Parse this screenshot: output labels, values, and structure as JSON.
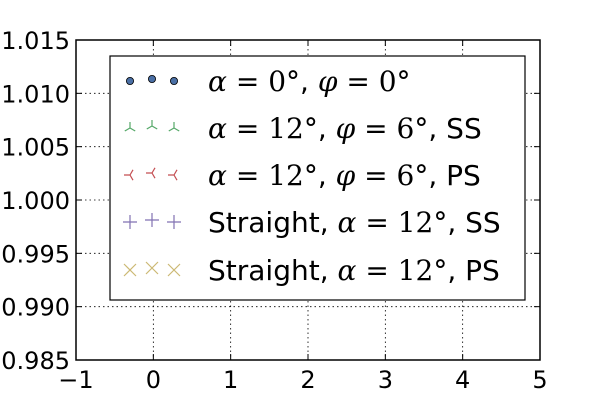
{
  "chart_data": {
    "type": "scatter",
    "xlim": [
      -1,
      5
    ],
    "ylim": [
      0.985,
      1.015
    ],
    "x_ticks": [
      -1,
      0,
      1,
      2,
      3,
      4,
      5
    ],
    "x_tick_labels": [
      "−1",
      "0",
      "1",
      "2",
      "3",
      "4",
      "5"
    ],
    "y_ticks": [
      0.985,
      0.99,
      0.995,
      1.0,
      1.005,
      1.01,
      1.015
    ],
    "y_tick_labels": [
      "0.985",
      "0.990",
      "0.995",
      "1.000",
      "1.005",
      "1.010",
      "1.015"
    ],
    "grid": true,
    "legend_position": "center",
    "series": [
      {
        "name": "α = 0°, φ = 0°",
        "marker": "circle",
        "color": "#4a6fa5",
        "values": []
      },
      {
        "name": "α = 12°, φ = 6°, SS",
        "marker": "tri-down",
        "color": "#55a868",
        "values": []
      },
      {
        "name": "α = 12°, φ = 6°, PS",
        "marker": "tri-right",
        "color": "#c44e52",
        "values": []
      },
      {
        "name": "Straight, α = 12°, SS",
        "marker": "plus",
        "color": "#8172b2",
        "values": []
      },
      {
        "name": "Straight, α = 12°, PS",
        "marker": "x",
        "color": "#ccb974",
        "values": []
      }
    ]
  }
}
